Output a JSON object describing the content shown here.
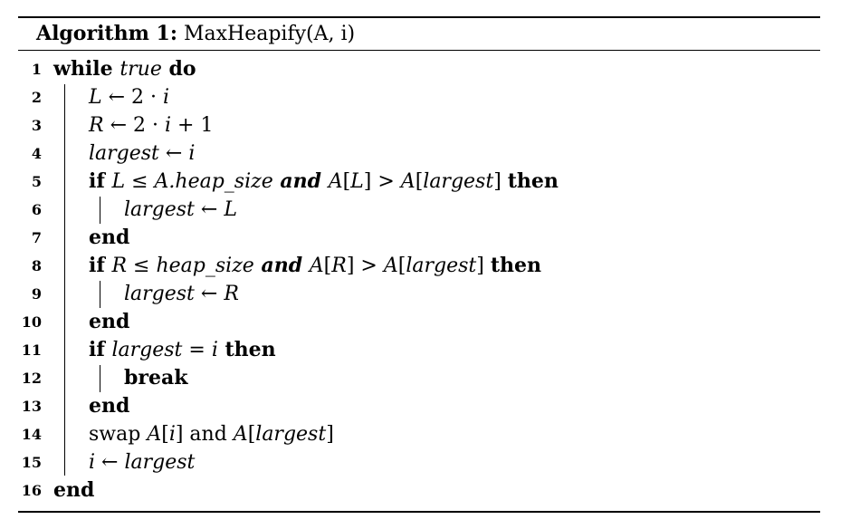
{
  "caption": {
    "label": "Algorithm 1:",
    "name": "MaxHeapify(A, i)"
  },
  "lines": [
    {
      "num": "1",
      "indent": 0,
      "segments": [
        {
          "t": "while ",
          "s": "kw"
        },
        {
          "t": "true",
          "s": "it"
        },
        {
          "t": " do",
          "s": "kw"
        }
      ]
    },
    {
      "num": "2",
      "indent": 1,
      "segments": [
        {
          "t": "L",
          "s": "it"
        },
        {
          "t": " ← 2 · ",
          "s": ""
        },
        {
          "t": "i",
          "s": "it"
        }
      ]
    },
    {
      "num": "3",
      "indent": 1,
      "segments": [
        {
          "t": "R",
          "s": "it"
        },
        {
          "t": " ← 2 · ",
          "s": ""
        },
        {
          "t": "i",
          "s": "it"
        },
        {
          "t": " + 1",
          "s": ""
        }
      ]
    },
    {
      "num": "4",
      "indent": 1,
      "segments": [
        {
          "t": "largest",
          "s": "it"
        },
        {
          "t": " ← ",
          "s": ""
        },
        {
          "t": "i",
          "s": "it"
        }
      ]
    },
    {
      "num": "5",
      "indent": 1,
      "segments": [
        {
          "t": "if ",
          "s": "kw"
        },
        {
          "t": "L",
          "s": "it"
        },
        {
          "t": " ≤ ",
          "s": ""
        },
        {
          "t": "A.heap_size",
          "s": "it"
        },
        {
          "t": " and ",
          "s": "bit"
        },
        {
          "t": "A",
          "s": "it"
        },
        {
          "t": "[",
          "s": ""
        },
        {
          "t": "L",
          "s": "it"
        },
        {
          "t": "] > ",
          "s": ""
        },
        {
          "t": "A",
          "s": "it"
        },
        {
          "t": "[",
          "s": ""
        },
        {
          "t": "largest",
          "s": "it"
        },
        {
          "t": "] ",
          "s": ""
        },
        {
          "t": "then",
          "s": "kw"
        }
      ]
    },
    {
      "num": "6",
      "indent": 2,
      "segments": [
        {
          "t": "largest",
          "s": "it"
        },
        {
          "t": " ← ",
          "s": ""
        },
        {
          "t": "L",
          "s": "it"
        }
      ]
    },
    {
      "num": "7",
      "indent": 1,
      "segments": [
        {
          "t": "end",
          "s": "kw"
        }
      ]
    },
    {
      "num": "8",
      "indent": 1,
      "segments": [
        {
          "t": "if ",
          "s": "kw"
        },
        {
          "t": "R",
          "s": "it"
        },
        {
          "t": " ≤ ",
          "s": ""
        },
        {
          "t": "heap_size",
          "s": "it"
        },
        {
          "t": " and ",
          "s": "bit"
        },
        {
          "t": "A",
          "s": "it"
        },
        {
          "t": "[",
          "s": ""
        },
        {
          "t": "R",
          "s": "it"
        },
        {
          "t": "] > ",
          "s": ""
        },
        {
          "t": "A",
          "s": "it"
        },
        {
          "t": "[",
          "s": ""
        },
        {
          "t": "largest",
          "s": "it"
        },
        {
          "t": "] ",
          "s": ""
        },
        {
          "t": "then",
          "s": "kw"
        }
      ]
    },
    {
      "num": "9",
      "indent": 2,
      "segments": [
        {
          "t": "largest",
          "s": "it"
        },
        {
          "t": " ← ",
          "s": ""
        },
        {
          "t": "R",
          "s": "it"
        }
      ]
    },
    {
      "num": "10",
      "indent": 1,
      "segments": [
        {
          "t": "end",
          "s": "kw"
        }
      ]
    },
    {
      "num": "11",
      "indent": 1,
      "segments": [
        {
          "t": "if ",
          "s": "kw"
        },
        {
          "t": "largest",
          "s": "it"
        },
        {
          "t": " = ",
          "s": ""
        },
        {
          "t": "i",
          "s": "it"
        },
        {
          "t": " then",
          "s": "kw"
        }
      ]
    },
    {
      "num": "12",
      "indent": 2,
      "segments": [
        {
          "t": "break",
          "s": "kw"
        }
      ]
    },
    {
      "num": "13",
      "indent": 1,
      "segments": [
        {
          "t": "end",
          "s": "kw"
        }
      ]
    },
    {
      "num": "14",
      "indent": 1,
      "segments": [
        {
          "t": "swap ",
          "s": ""
        },
        {
          "t": "A",
          "s": "it"
        },
        {
          "t": "[",
          "s": ""
        },
        {
          "t": "i",
          "s": "it"
        },
        {
          "t": "] and ",
          "s": ""
        },
        {
          "t": "A",
          "s": "it"
        },
        {
          "t": "[",
          "s": ""
        },
        {
          "t": "largest",
          "s": "it"
        },
        {
          "t": "]",
          "s": ""
        }
      ]
    },
    {
      "num": "15",
      "indent": 1,
      "segments": [
        {
          "t": "i",
          "s": "it"
        },
        {
          "t": " ← ",
          "s": ""
        },
        {
          "t": "largest",
          "s": "it"
        }
      ]
    },
    {
      "num": "16",
      "indent": 0,
      "segments": [
        {
          "t": "end",
          "s": "kw"
        }
      ]
    }
  ]
}
